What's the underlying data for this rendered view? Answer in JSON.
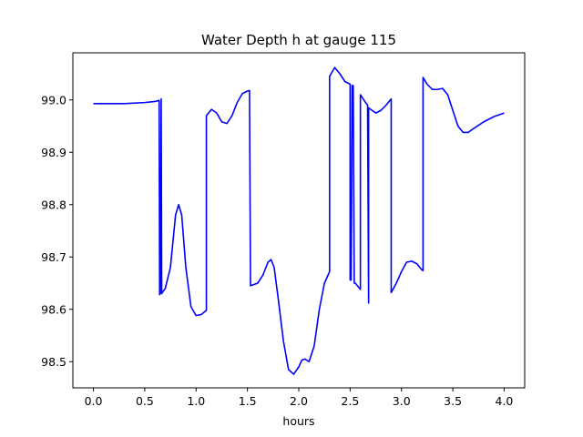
{
  "chart_data": {
    "type": "line",
    "title": "Water Depth h at gauge 115",
    "xlabel": "hours",
    "ylabel": "",
    "xlim": [
      -0.2,
      4.2
    ],
    "ylim": [
      98.45,
      99.09
    ],
    "xticks": [
      0.0,
      0.5,
      1.0,
      1.5,
      2.0,
      2.5,
      3.0,
      3.5,
      4.0
    ],
    "xtick_labels": [
      "0.0",
      "0.5",
      "1.0",
      "1.5",
      "2.0",
      "2.5",
      "3.0",
      "3.5",
      "4.0"
    ],
    "yticks": [
      98.5,
      98.6,
      98.7,
      98.8,
      98.9,
      99.0
    ],
    "ytick_labels": [
      "98.5",
      "98.6",
      "98.7",
      "98.8",
      "98.9",
      "99.0"
    ],
    "grid": false,
    "series": [
      {
        "color": "#0000ff",
        "x": [
          0.0,
          0.3,
          0.5,
          0.6,
          0.64,
          0.645,
          0.65,
          0.66,
          0.665,
          0.67,
          0.7,
          0.75,
          0.8,
          0.83,
          0.86,
          0.9,
          0.95,
          1.0,
          1.05,
          1.1,
          1.1,
          1.15,
          1.2,
          1.25,
          1.3,
          1.35,
          1.4,
          1.45,
          1.5,
          1.52,
          1.53,
          1.6,
          1.65,
          1.7,
          1.73,
          1.76,
          1.8,
          1.85,
          1.9,
          1.95,
          2.0,
          2.03,
          2.06,
          2.1,
          2.15,
          2.2,
          2.25,
          2.3,
          2.3,
          2.35,
          2.4,
          2.45,
          2.5,
          2.5,
          2.51,
          2.52,
          2.53,
          2.54,
          2.55,
          2.6,
          2.6,
          2.65,
          2.67,
          2.68,
          2.68,
          2.7,
          2.75,
          2.8,
          2.85,
          2.9,
          2.9,
          2.95,
          3.0,
          3.05,
          3.1,
          3.15,
          3.2,
          3.21,
          3.21,
          3.25,
          3.3,
          3.35,
          3.4,
          3.45,
          3.5,
          3.55,
          3.6,
          3.65,
          3.7,
          3.8,
          3.9,
          4.0
        ],
        "y": [
          98.993,
          98.993,
          98.995,
          98.997,
          98.999,
          98.628,
          98.63,
          99.002,
          98.63,
          98.632,
          98.64,
          98.68,
          98.78,
          98.8,
          98.78,
          98.68,
          98.605,
          98.588,
          98.59,
          98.598,
          98.97,
          98.982,
          98.975,
          98.958,
          98.955,
          98.97,
          98.995,
          99.012,
          99.017,
          99.018,
          98.645,
          98.65,
          98.665,
          98.69,
          98.695,
          98.68,
          98.62,
          98.54,
          98.485,
          98.476,
          98.49,
          98.503,
          98.505,
          98.5,
          98.53,
          98.6,
          98.65,
          98.672,
          99.045,
          99.062,
          99.05,
          99.035,
          99.03,
          98.656,
          98.656,
          99.028,
          99.027,
          98.65,
          98.65,
          98.638,
          99.01,
          98.995,
          98.99,
          98.612,
          98.985,
          98.982,
          98.975,
          98.98,
          98.99,
          99.002,
          98.632,
          98.65,
          98.672,
          98.69,
          98.692,
          98.687,
          98.675,
          98.674,
          99.043,
          99.03,
          99.02,
          99.02,
          99.022,
          99.01,
          98.98,
          98.95,
          98.938,
          98.938,
          98.945,
          98.958,
          98.968,
          98.975
        ]
      }
    ]
  }
}
